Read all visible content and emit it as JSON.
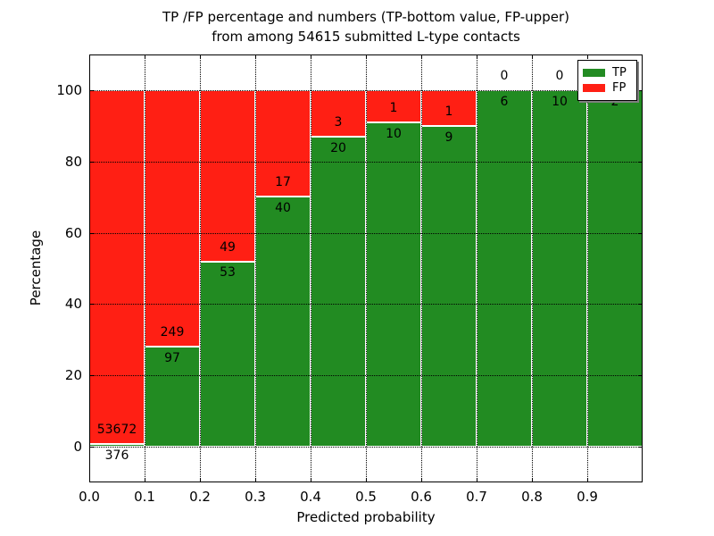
{
  "title": {
    "line1": "TP /FP percentage and numbers (TP-bottom value, FP-upper)",
    "line2": "from among 54615 submitted L-type contacts"
  },
  "axes": {
    "xlabel": "Predicted probability",
    "ylabel": "Percentage",
    "x_tick_labels": [
      "0.0",
      "0.1",
      "0.2",
      "0.3",
      "0.4",
      "0.5",
      "0.6",
      "0.7",
      "0.8",
      "0.9"
    ],
    "y_ticks": [
      0,
      20,
      40,
      60,
      80,
      100
    ],
    "xlim": [
      0.0,
      1.0
    ],
    "ylim": [
      -10,
      110
    ],
    "grid": "dotted"
  },
  "legend": {
    "position": "upper right",
    "items": [
      {
        "label": "TP",
        "color": "#228b22"
      },
      {
        "label": "FP",
        "color": "#ff1f14"
      }
    ]
  },
  "chart_data": {
    "type": "bar",
    "subtype": "stacked-100-percent",
    "title": "TP /FP percentage and numbers (TP-bottom value, FP-upper) from among 54615 submitted L-type contacts",
    "xlabel": "Predicted probability",
    "ylabel": "Percentage",
    "total_contacts": 54615,
    "bin_width": 0.1,
    "bins": [
      "0.0-0.1",
      "0.1-0.2",
      "0.2-0.3",
      "0.3-0.4",
      "0.4-0.5",
      "0.5-0.6",
      "0.6-0.7",
      "0.7-0.8",
      "0.8-0.9",
      "0.9-1.0"
    ],
    "series": [
      {
        "name": "TP",
        "color": "#228b22",
        "values": [
          376,
          97,
          53,
          40,
          20,
          10,
          9,
          6,
          10,
          2
        ]
      },
      {
        "name": "FP",
        "color": "#ff1f14",
        "values": [
          53672,
          249,
          49,
          17,
          3,
          1,
          1,
          0,
          0,
          0
        ]
      }
    ],
    "tp_percent": [
      0.7,
      28.03,
      51.96,
      70.18,
      86.96,
      90.91,
      90.0,
      100.0,
      100.0,
      100.0
    ],
    "label_note": "TP count printed below segment boundary, FP count above it; last FP label hidden behind legend"
  }
}
